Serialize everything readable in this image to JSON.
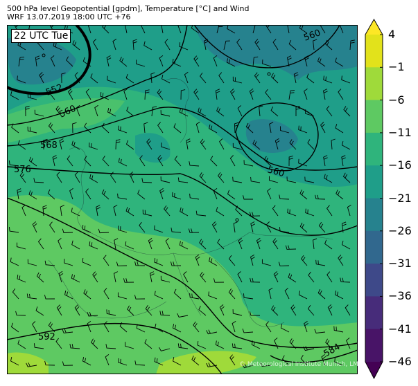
{
  "header": {
    "title": "500 hPa level Geopotential [gpdm], Temperature [°C] and Wind",
    "subtitle": "WRF 13.07.2019 18:00 UTC +76"
  },
  "map": {
    "valid_time_label": "22 UTC Tue",
    "watermark": "© Meteorological Institute Munich, LMU",
    "contour_labels": [
      "552",
      "560",
      "568",
      "576",
      "560",
      "560",
      "584",
      "592"
    ],
    "fill_colors": {
      "bg": "#2fb47c",
      "north": "#1f9e89",
      "cold": "#26828e",
      "warm": "#5ec962",
      "hot": "#9fda3a"
    }
  },
  "colorbar": {
    "unit": "°C",
    "ticks": [
      "4",
      "−1",
      "−6",
      "−11",
      "−16",
      "−21",
      "−26",
      "−31",
      "−36",
      "−41",
      "−46"
    ],
    "colors": [
      "#e2e21b",
      "#9fda3a",
      "#5ec962",
      "#2fb47c",
      "#1f9e89",
      "#26828e",
      "#31688e",
      "#3e4989",
      "#472c7a",
      "#481467"
    ],
    "extend_max_color": "#fde725",
    "extend_min_color": "#440154"
  }
}
